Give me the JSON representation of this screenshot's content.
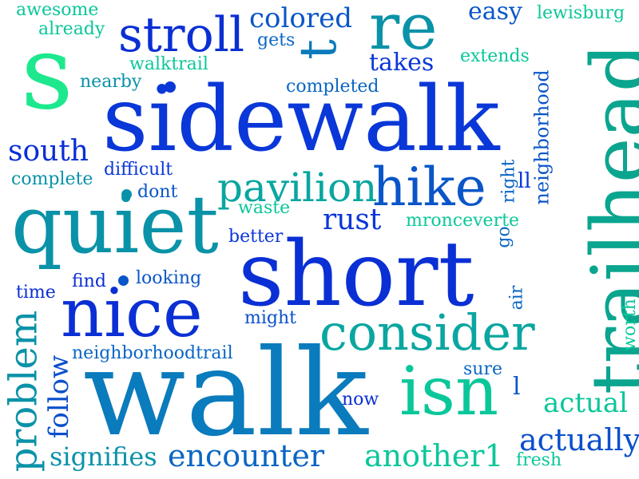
{
  "words": {
    "sidewalk": "sidewalk",
    "walk": "walk",
    "short": "short",
    "trailhead": "trailhead",
    "quiet": "quiet",
    "nice": "nice",
    "isn": "isn",
    "consider": "consider",
    "hike": "hike",
    "stroll": "stroll",
    "re": "re",
    "t": "t",
    "s": "s",
    "pavilion": "pavilion",
    "problem": "problem",
    "actually": "actually",
    "encounter": "encounter",
    "another1": "another1",
    "actual": "actual",
    "south": "south",
    "signifies": "signifies",
    "follow": "follow",
    "neighborhood": "neighborhood",
    "colored": "colored",
    "rust": "rust",
    "easy": "easy",
    "takes": "takes",
    "awesome": "awesome",
    "lewisburg": "lewisburg",
    "already": "already",
    "gets": "gets",
    "walktrail": "walktrail",
    "extends": "extends",
    "nearby": "nearby",
    "completed": "completed",
    "complete": "complete",
    "difficult": "difficult",
    "dont": "dont",
    "right": "right",
    "ll": "ll",
    "waste": "waste",
    "mronceverte": "mronceverte",
    "better": "better",
    "go": "go",
    "time": "time",
    "find": "find",
    "looking": "looking",
    "air": "air",
    "might": "might",
    "worth": "worth",
    "neighborhoodtrail": "neighborhoodtrail",
    "sure": "sure",
    "l": "l",
    "now": "now",
    "fresh": "fresh"
  }
}
